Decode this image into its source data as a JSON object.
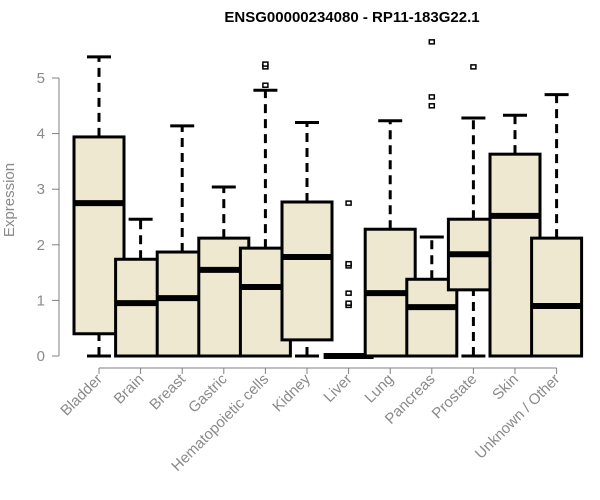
{
  "chart_data": {
    "type": "box",
    "title": "ENSG00000234080 - RP11-183G22.1",
    "xlabel": "",
    "ylabel": "Expression",
    "ylim": [
      0,
      5.5
    ],
    "yticks": [
      0,
      1,
      2,
      3,
      4,
      5
    ],
    "grid": false,
    "colors": {
      "box_fill": "#ede8cf",
      "stroke": "#000000",
      "axis": "#808080",
      "tick_text": "#8a8a8a"
    },
    "categories": [
      "Bladder",
      "Brain",
      "Breast",
      "Gastric",
      "Hematopoietic cells",
      "Kidney",
      "Liver",
      "Lung",
      "Pancreas",
      "Prostate",
      "Skin",
      "Unknown / Other"
    ],
    "boxes": [
      {
        "min": 0,
        "q1": 0.4,
        "median": 2.75,
        "q3": 3.94,
        "max": 5.38,
        "outliers": []
      },
      {
        "min": 0,
        "q1": 0,
        "median": 0.95,
        "q3": 1.74,
        "max": 2.46,
        "outliers": []
      },
      {
        "min": 0,
        "q1": 0,
        "median": 1.04,
        "q3": 1.87,
        "max": 4.14,
        "outliers": []
      },
      {
        "min": 0,
        "q1": 0,
        "median": 1.55,
        "q3": 2.12,
        "max": 3.04,
        "outliers": []
      },
      {
        "min": 0,
        "q1": 0,
        "median": 1.24,
        "q3": 1.94,
        "max": 4.78,
        "outliers": [
          4.87,
          5.2,
          5.25
        ]
      },
      {
        "min": 0,
        "q1": 0.29,
        "median": 1.78,
        "q3": 2.77,
        "max": 4.2,
        "outliers": []
      },
      {
        "min": 0,
        "q1": 0,
        "median": 0,
        "q3": 0,
        "max": 0,
        "outliers": [
          0.91,
          0.95,
          1.13,
          1.62,
          1.66,
          2.75
        ]
      },
      {
        "min": 0,
        "q1": 0,
        "median": 1.13,
        "q3": 2.28,
        "max": 4.23,
        "outliers": []
      },
      {
        "min": 0,
        "q1": 0,
        "median": 0.88,
        "q3": 1.38,
        "max": 2.14,
        "outliers": [
          4.5,
          4.66,
          5.65
        ]
      },
      {
        "min": 0,
        "q1": 1.19,
        "median": 1.83,
        "q3": 2.46,
        "max": 4.28,
        "outliers": [
          5.2
        ]
      },
      {
        "min": 0,
        "q1": 0,
        "median": 2.52,
        "q3": 3.63,
        "max": 4.33,
        "outliers": []
      },
      {
        "min": 0,
        "q1": 0,
        "median": 0.9,
        "q3": 2.12,
        "max": 4.7,
        "outliers": []
      }
    ]
  }
}
